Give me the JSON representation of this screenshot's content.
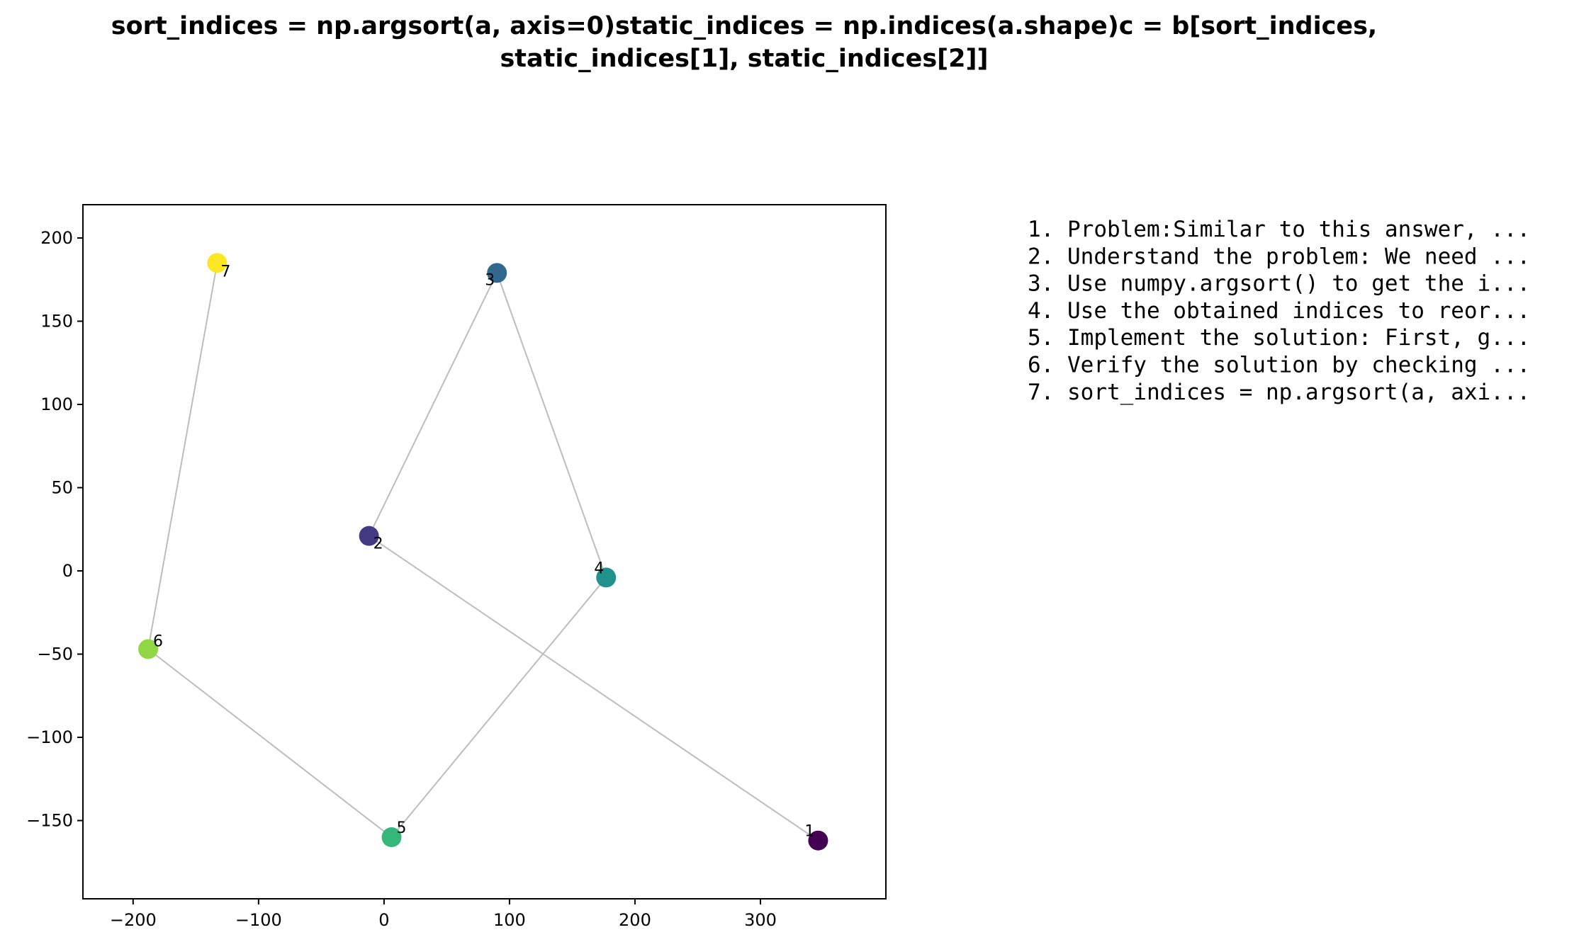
{
  "chart_data": {
    "type": "scatter",
    "title_lines": [
      "sort_indices = np.argsort(a, axis=0)static_indices = np.indices(a.shape)c = b[sort_indices,",
      "static_indices[1], static_indices[2]]"
    ],
    "xlabel": "",
    "ylabel": "",
    "xlim": [
      -240,
      400
    ],
    "ylim": [
      -197,
      220
    ],
    "xticks": [
      -200,
      -100,
      0,
      100,
      200,
      300
    ],
    "yticks": [
      -150,
      -100,
      -50,
      0,
      50,
      100,
      150,
      200
    ],
    "grid": false,
    "colormap": "viridis",
    "point_color": "#333333",
    "line_color": "#bdbdbd",
    "points": [
      {
        "label": "1",
        "x": 346,
        "y": -162,
        "color": "#440154"
      },
      {
        "label": "2",
        "x": -12,
        "y": 21,
        "color": "#443983"
      },
      {
        "label": "3",
        "x": 90,
        "y": 179,
        "color": "#31688e"
      },
      {
        "label": "4",
        "x": 177,
        "y": -4,
        "color": "#21918c"
      },
      {
        "label": "5",
        "x": 6,
        "y": -160,
        "color": "#35b779"
      },
      {
        "label": "6",
        "x": -188,
        "y": -47,
        "color": "#90d743"
      },
      {
        "label": "7",
        "x": -133,
        "y": 185,
        "color": "#fde725"
      }
    ],
    "connections": [
      [
        "1",
        "2"
      ],
      [
        "2",
        "3"
      ],
      [
        "3",
        "4"
      ],
      [
        "4",
        "5"
      ],
      [
        "5",
        "6"
      ],
      [
        "6",
        "7"
      ]
    ],
    "legend_placement": "right",
    "legend_items": [
      "1. Problem:Similar to this answer, ...",
      "2. Understand the problem: We need ...",
      "3. Use numpy.argsort() to get the i...",
      "4. Use the obtained indices to reor...",
      "5. Implement the solution: First, g...",
      "6. Verify the solution by checking ...",
      "7. sort_indices = np.argsort(a, axi..."
    ]
  }
}
